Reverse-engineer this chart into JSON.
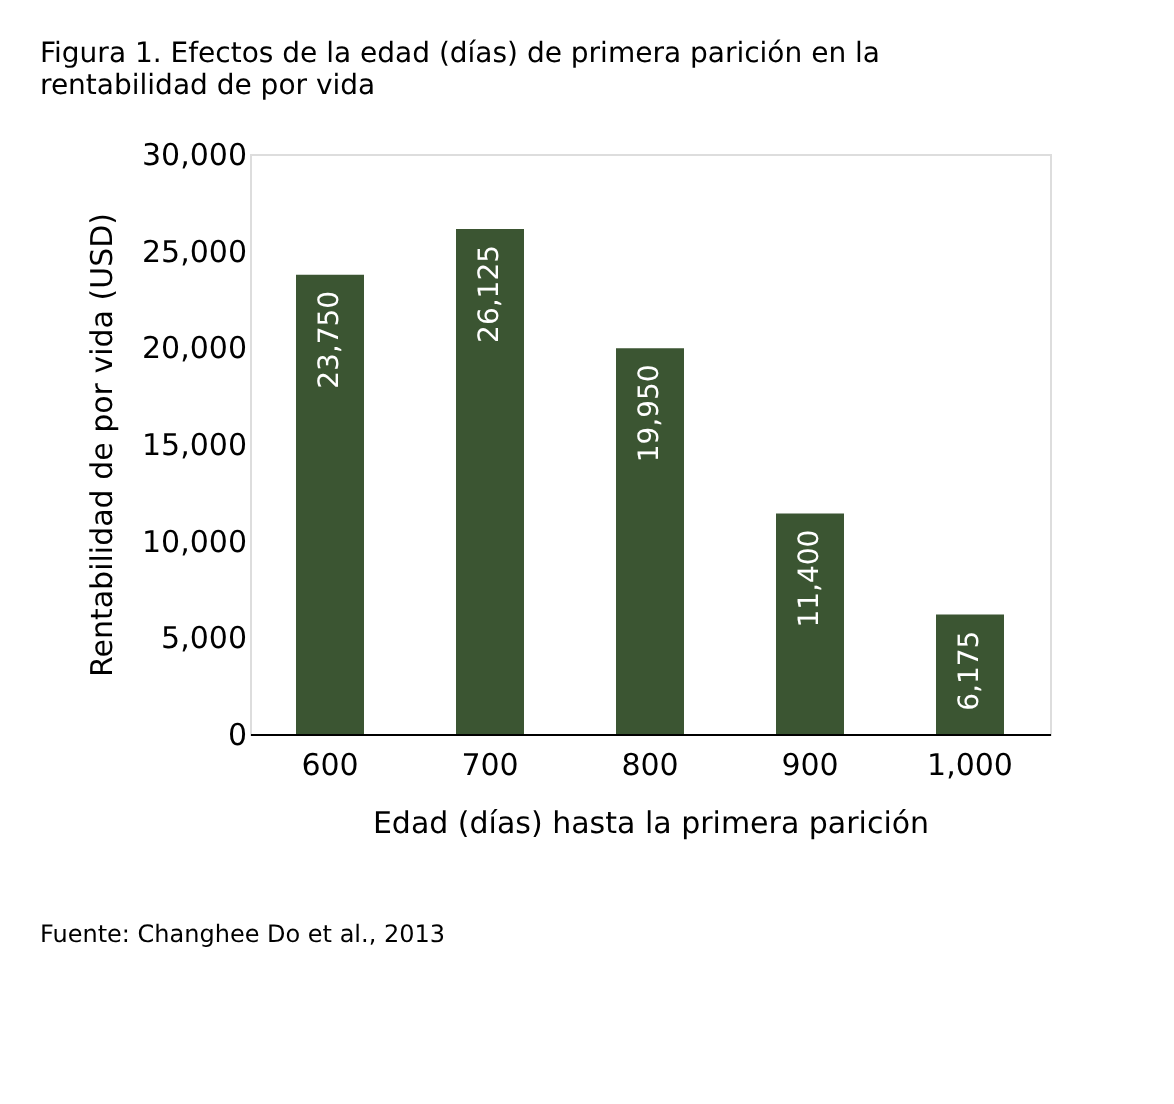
{
  "chart_data": {
    "type": "bar",
    "title": "Figura 1. Efectos de la edad (días) de primera parición en la rentabilidad de por vida",
    "xlabel": "Edad (días) hasta la primera parición",
    "ylabel": "Rentabilidad de por vida (USD)",
    "categories": [
      "600",
      "700",
      "800",
      "900",
      "1,000"
    ],
    "values": [
      23750,
      26125,
      19950,
      11400,
      6175
    ],
    "value_labels": [
      "23,750",
      "26,125",
      "19,950",
      "11,400",
      "6,175"
    ],
    "color": "#3b5532",
    "ylim": [
      0,
      30000
    ],
    "yticks": [
      0,
      {
        "value": 5000,
        "label": "5,000"
      },
      {
        "value": 10000,
        "label": "10,000"
      },
      {
        "value": 15000,
        "label": "15,000"
      },
      {
        "value": 20000,
        "label": "20,000"
      },
      {
        "value": 25000,
        "label": "25,000"
      },
      {
        "value": 30000,
        "label": "30,000"
      }
    ],
    "grid": false,
    "annotations": [
      "Fuente: Changhee Do et al., 2013"
    ]
  }
}
